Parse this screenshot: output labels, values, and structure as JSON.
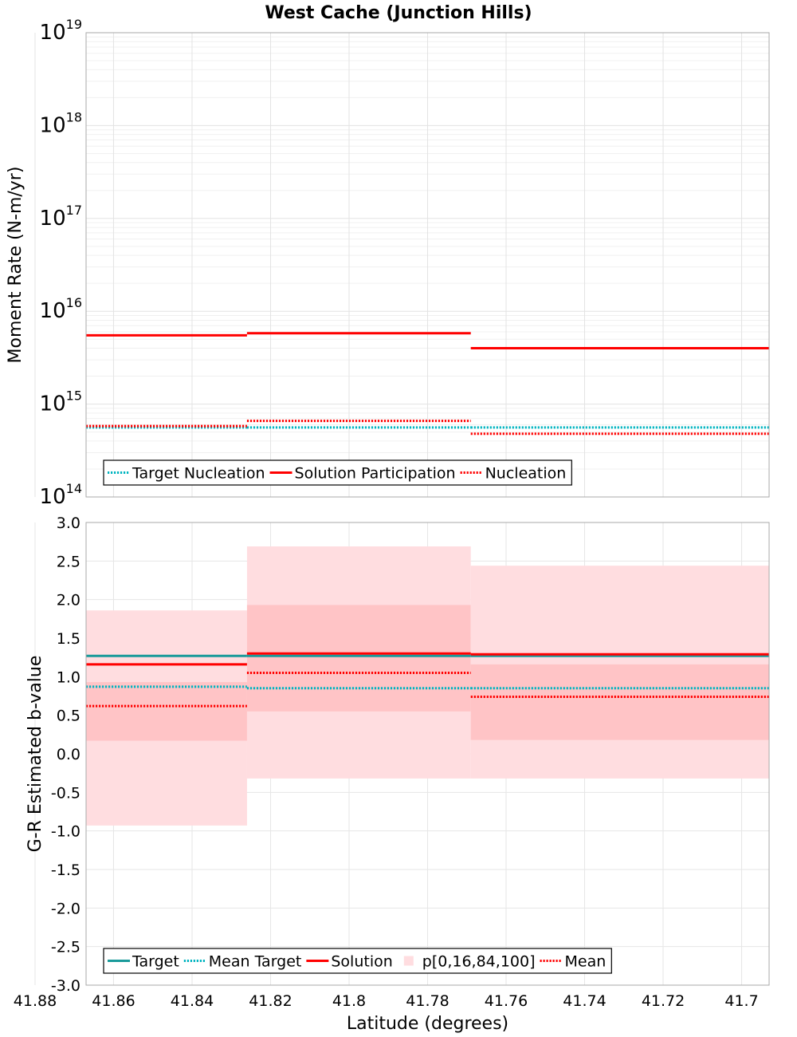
{
  "title": "West Cache (Junction Hills)",
  "chart_data": [
    {
      "type": "line",
      "name": "moment-rate-panel",
      "ylabel": "Moment Rate (N-m/yr)",
      "yscale": "log",
      "ylim": [
        100000000000000.0,
        1e+19
      ],
      "xlim": [
        41.867,
        41.693
      ],
      "x_reversed": true,
      "ytick_bases": [
        "10",
        "10",
        "10",
        "10",
        "10",
        "10"
      ],
      "ytick_exponents": [
        "14",
        "15",
        "16",
        "17",
        "18",
        "19"
      ],
      "ytick_values": [
        100000000000000.0,
        1000000000000000.0,
        1e+16,
        1e+17,
        1e+18,
        1e+19
      ],
      "grid": true,
      "legend_position": "bottom-left",
      "series": [
        {
          "name": "Target Nucleation",
          "color": "#00b4c0",
          "style": "dotted",
          "segments": [
            [
              41.867,
              41.826,
              560000000000000.0
            ],
            [
              41.826,
              41.769,
              560000000000000.0
            ],
            [
              41.769,
              41.693,
              560000000000000.0
            ]
          ]
        },
        {
          "name": "Solution Participation",
          "color": "#ff0000",
          "style": "solid",
          "segments": [
            [
              41.867,
              41.826,
              5500000000000000.0
            ],
            [
              41.826,
              41.769,
              5800000000000000.0
            ],
            [
              41.769,
              41.693,
              4000000000000000.0
            ]
          ]
        },
        {
          "name": "Nucleation",
          "color": "#ff0000",
          "style": "dotted",
          "segments": [
            [
              41.867,
              41.826,
              580000000000000.0
            ],
            [
              41.826,
              41.769,
              660000000000000.0
            ],
            [
              41.769,
              41.693,
              480000000000000.0
            ]
          ]
        }
      ]
    },
    {
      "type": "line",
      "name": "b-value-panel",
      "ylabel": "G-R Estimated b-value",
      "xlabel": "Latitude (degrees)",
      "ylim": [
        -3.0,
        3.0
      ],
      "xlim": [
        41.867,
        41.693
      ],
      "x_reversed": true,
      "yticks": [
        "-3.0",
        "-2.5",
        "-2.0",
        "-1.5",
        "-1.0",
        "-0.5",
        "0.0",
        "0.5",
        "1.0",
        "1.5",
        "2.0",
        "2.5",
        "3.0"
      ],
      "ytick_values": [
        -3.0,
        -2.5,
        -2.0,
        -1.5,
        -1.0,
        -0.5,
        0.0,
        0.5,
        1.0,
        1.5,
        2.0,
        2.5,
        3.0
      ],
      "xticks": [
        "41.88",
        "41.86",
        "41.84",
        "41.82",
        "41.8",
        "41.78",
        "41.76",
        "41.74",
        "41.72",
        "41.7"
      ],
      "xtick_values": [
        41.88,
        41.86,
        41.84,
        41.82,
        41.8,
        41.78,
        41.76,
        41.74,
        41.72,
        41.7
      ],
      "grid": true,
      "legend_position": "bottom-left",
      "bands": [
        {
          "name": "p[0,16,84,100]",
          "outer_color": "#ffdde0",
          "inner_color": "#ffc4c6",
          "segments": [
            {
              "x0": 41.867,
              "x1": 41.826,
              "p0": -0.93,
              "p16": 0.17,
              "p84": 0.93,
              "p100": 1.86
            },
            {
              "x0": 41.826,
              "x1": 41.769,
              "p0": -0.32,
              "p16": 0.55,
              "p84": 1.93,
              "p100": 2.69
            },
            {
              "x0": 41.769,
              "x1": 41.693,
              "p0": -0.32,
              "p16": 0.18,
              "p84": 1.16,
              "p100": 2.44
            }
          ]
        }
      ],
      "series": [
        {
          "name": "Target",
          "color": "#1a9a9a",
          "style": "solid",
          "segments": [
            [
              41.867,
              41.826,
              1.27
            ],
            [
              41.826,
              41.769,
              1.27
            ],
            [
              41.769,
              41.693,
              1.27
            ]
          ]
        },
        {
          "name": "Mean Target",
          "color": "#00b4c0",
          "style": "dotted",
          "segments": [
            [
              41.867,
              41.826,
              0.87
            ],
            [
              41.826,
              41.769,
              0.85
            ],
            [
              41.769,
              41.693,
              0.85
            ]
          ]
        },
        {
          "name": "Solution",
          "color": "#ff0000",
          "style": "solid",
          "segments": [
            [
              41.867,
              41.826,
              1.16
            ],
            [
              41.826,
              41.769,
              1.3
            ],
            [
              41.769,
              41.693,
              1.29
            ]
          ]
        },
        {
          "name": "Mean",
          "color": "#ff0000",
          "style": "dotted",
          "segments": [
            [
              41.867,
              41.826,
              0.62
            ],
            [
              41.826,
              41.769,
              1.05
            ],
            [
              41.769,
              41.693,
              0.74
            ]
          ]
        }
      ]
    }
  ]
}
